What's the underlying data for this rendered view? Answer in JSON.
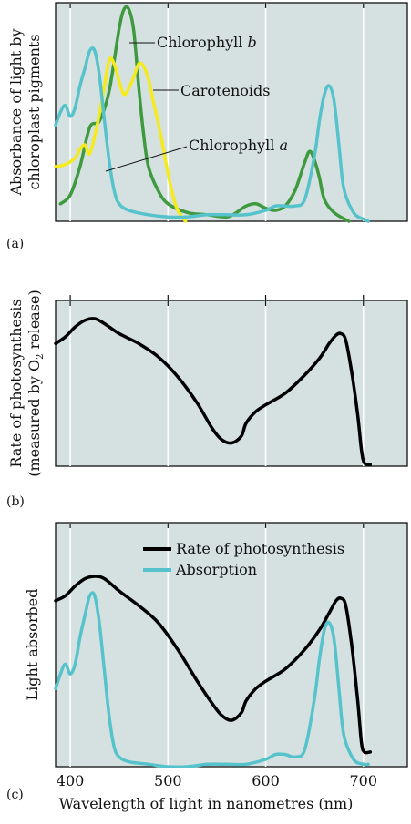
{
  "colors": {
    "panel_bg": "#d5e1e1",
    "chlorophyll_a": "#56c3cc",
    "chlorophyll_b": "#3f9a3f",
    "carotenoids": "#f5ea1e",
    "rate": "#000000"
  },
  "chart_data": [
    {
      "type": "line",
      "panel_label": "(a)",
      "title": "",
      "xlabel": "",
      "ylabel_lines": [
        "Absorbance of light by",
        "chloroplast pigments"
      ],
      "xlim": [
        385,
        745
      ],
      "ylim": [
        0,
        1
      ],
      "x_ticks": [
        400,
        500,
        600,
        700
      ],
      "grid": true,
      "series": [
        {
          "name": "Chlorophyll b",
          "color": "#3f9a3f",
          "points": [
            [
              390,
              0.08
            ],
            [
              400,
              0.12
            ],
            [
              410,
              0.25
            ],
            [
              420,
              0.43
            ],
            [
              430,
              0.46
            ],
            [
              440,
              0.6
            ],
            [
              450,
              0.88
            ],
            [
              455,
              0.97
            ],
            [
              460,
              0.97
            ],
            [
              465,
              0.87
            ],
            [
              470,
              0.62
            ],
            [
              475,
              0.4
            ],
            [
              480,
              0.25
            ],
            [
              490,
              0.14
            ],
            [
              500,
              0.08
            ],
            [
              520,
              0.04
            ],
            [
              540,
              0.03
            ],
            [
              560,
              0.02
            ],
            [
              570,
              0.04
            ],
            [
              580,
              0.07
            ],
            [
              590,
              0.08
            ],
            [
              600,
              0.06
            ],
            [
              610,
              0.05
            ],
            [
              620,
              0.07
            ],
            [
              630,
              0.14
            ],
            [
              640,
              0.27
            ],
            [
              645,
              0.32
            ],
            [
              650,
              0.28
            ],
            [
              655,
              0.2
            ],
            [
              660,
              0.1
            ],
            [
              670,
              0.04
            ],
            [
              685,
              0.0
            ]
          ]
        },
        {
          "name": "Carotenoids",
          "color": "#f5ea1e",
          "points": [
            [
              385,
              0.25
            ],
            [
              395,
              0.26
            ],
            [
              405,
              0.29
            ],
            [
              410,
              0.33
            ],
            [
              415,
              0.35
            ],
            [
              420,
              0.31
            ],
            [
              428,
              0.45
            ],
            [
              435,
              0.62
            ],
            [
              440,
              0.74
            ],
            [
              445,
              0.72
            ],
            [
              450,
              0.64
            ],
            [
              455,
              0.58
            ],
            [
              460,
              0.61
            ],
            [
              465,
              0.66
            ],
            [
              470,
              0.72
            ],
            [
              475,
              0.71
            ],
            [
              480,
              0.65
            ],
            [
              485,
              0.55
            ],
            [
              490,
              0.45
            ],
            [
              495,
              0.34
            ],
            [
              500,
              0.22
            ],
            [
              505,
              0.12
            ],
            [
              510,
              0.05
            ],
            [
              518,
              0.0
            ]
          ]
        },
        {
          "name": "Chlorophyll a",
          "color": "#56c3cc",
          "points": [
            [
              385,
              0.44
            ],
            [
              390,
              0.5
            ],
            [
              395,
              0.53
            ],
            [
              400,
              0.48
            ],
            [
              405,
              0.52
            ],
            [
              410,
              0.62
            ],
            [
              415,
              0.7
            ],
            [
              420,
              0.78
            ],
            [
              425,
              0.78
            ],
            [
              430,
              0.66
            ],
            [
              435,
              0.46
            ],
            [
              440,
              0.27
            ],
            [
              445,
              0.14
            ],
            [
              450,
              0.08
            ],
            [
              460,
              0.05
            ],
            [
              480,
              0.03
            ],
            [
              500,
              0.02
            ],
            [
              520,
              0.02
            ],
            [
              540,
              0.03
            ],
            [
              560,
              0.03
            ],
            [
              580,
              0.03
            ],
            [
              600,
              0.05
            ],
            [
              610,
              0.07
            ],
            [
              620,
              0.07
            ],
            [
              630,
              0.07
            ],
            [
              640,
              0.1
            ],
            [
              650,
              0.3
            ],
            [
              655,
              0.46
            ],
            [
              660,
              0.58
            ],
            [
              665,
              0.62
            ],
            [
              670,
              0.55
            ],
            [
              675,
              0.35
            ],
            [
              680,
              0.15
            ],
            [
              690,
              0.04
            ],
            [
              700,
              0.01
            ],
            [
              705,
              0.0
            ]
          ]
        }
      ],
      "annotations": [
        {
          "text": "Chlorophyll ",
          "italic": "b",
          "series": "Chlorophyll b"
        },
        {
          "text": "Carotenoids",
          "italic": "",
          "series": "Carotenoids"
        },
        {
          "text": "Chlorophyll ",
          "italic": "a",
          "series": "Chlorophyll a"
        }
      ]
    },
    {
      "type": "line",
      "panel_label": "(b)",
      "title": "",
      "xlabel": "",
      "ylabel_lines": [
        "Rate of photosynthesis",
        "(measured by O",
        "2",
        " release)"
      ],
      "xlim": [
        385,
        745
      ],
      "ylim": [
        0,
        1
      ],
      "x_ticks": [
        400,
        500,
        600,
        700
      ],
      "grid": true,
      "series": [
        {
          "name": "Rate of photosynthesis",
          "color": "#000000",
          "points": [
            [
              385,
              0.74
            ],
            [
              395,
              0.78
            ],
            [
              405,
              0.84
            ],
            [
              415,
              0.88
            ],
            [
              425,
              0.89
            ],
            [
              435,
              0.86
            ],
            [
              450,
              0.8
            ],
            [
              470,
              0.74
            ],
            [
              490,
              0.66
            ],
            [
              510,
              0.54
            ],
            [
              530,
              0.38
            ],
            [
              545,
              0.23
            ],
            [
              555,
              0.16
            ],
            [
              565,
              0.14
            ],
            [
              575,
              0.18
            ],
            [
              580,
              0.26
            ],
            [
              590,
              0.33
            ],
            [
              600,
              0.37
            ],
            [
              620,
              0.44
            ],
            [
              640,
              0.55
            ],
            [
              655,
              0.65
            ],
            [
              665,
              0.74
            ],
            [
              672,
              0.79
            ],
            [
              677,
              0.8
            ],
            [
              682,
              0.76
            ],
            [
              688,
              0.57
            ],
            [
              694,
              0.32
            ],
            [
              698,
              0.1
            ],
            [
              701,
              0.02
            ],
            [
              707,
              0.01
            ]
          ]
        }
      ]
    },
    {
      "type": "line",
      "panel_label": "(c)",
      "title": "",
      "xlabel": "Wavelength of light in nanometres (nm)",
      "ylabel_lines": [
        "Light absorbed"
      ],
      "xlim": [
        385,
        745
      ],
      "ylim": [
        0,
        1
      ],
      "x_ticks": [
        400,
        500,
        600,
        700
      ],
      "x_tick_labels": [
        "400",
        "500",
        "600",
        "700"
      ],
      "grid": true,
      "legend_position": "top-right",
      "series": [
        {
          "name": "Rate of photosynthesis",
          "color": "#000000",
          "points": [
            [
              385,
              0.68
            ],
            [
              395,
              0.7
            ],
            [
              405,
              0.74
            ],
            [
              415,
              0.77
            ],
            [
              425,
              0.78
            ],
            [
              435,
              0.77
            ],
            [
              450,
              0.72
            ],
            [
              470,
              0.66
            ],
            [
              490,
              0.59
            ],
            [
              510,
              0.48
            ],
            [
              530,
              0.35
            ],
            [
              545,
              0.26
            ],
            [
              555,
              0.21
            ],
            [
              565,
              0.19
            ],
            [
              575,
              0.22
            ],
            [
              580,
              0.27
            ],
            [
              590,
              0.32
            ],
            [
              600,
              0.35
            ],
            [
              620,
              0.4
            ],
            [
              640,
              0.48
            ],
            [
              655,
              0.56
            ],
            [
              665,
              0.63
            ],
            [
              672,
              0.68
            ],
            [
              677,
              0.69
            ],
            [
              682,
              0.66
            ],
            [
              688,
              0.5
            ],
            [
              694,
              0.28
            ],
            [
              698,
              0.1
            ],
            [
              701,
              0.06
            ],
            [
              707,
              0.06
            ]
          ]
        },
        {
          "name": "Absorption",
          "color": "#56c3cc",
          "points": [
            [
              385,
              0.32
            ],
            [
              390,
              0.38
            ],
            [
              395,
              0.42
            ],
            [
              400,
              0.38
            ],
            [
              405,
              0.42
            ],
            [
              410,
              0.53
            ],
            [
              415,
              0.62
            ],
            [
              420,
              0.7
            ],
            [
              425,
              0.7
            ],
            [
              430,
              0.58
            ],
            [
              435,
              0.39
            ],
            [
              440,
              0.2
            ],
            [
              445,
              0.08
            ],
            [
              450,
              0.04
            ],
            [
              460,
              0.02
            ],
            [
              480,
              0.01
            ],
            [
              500,
              0.0
            ],
            [
              520,
              0.0
            ],
            [
              540,
              0.01
            ],
            [
              560,
              0.01
            ],
            [
              580,
              0.01
            ],
            [
              600,
              0.03
            ],
            [
              610,
              0.05
            ],
            [
              620,
              0.05
            ],
            [
              630,
              0.04
            ],
            [
              640,
              0.07
            ],
            [
              650,
              0.28
            ],
            [
              655,
              0.44
            ],
            [
              660,
              0.56
            ],
            [
              665,
              0.59
            ],
            [
              670,
              0.52
            ],
            [
              675,
              0.32
            ],
            [
              680,
              0.13
            ],
            [
              690,
              0.03
            ],
            [
              700,
              0.01
            ],
            [
              705,
              0.01
            ]
          ]
        }
      ]
    }
  ]
}
